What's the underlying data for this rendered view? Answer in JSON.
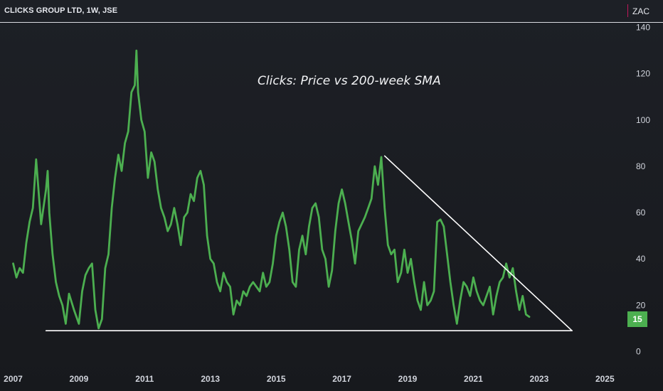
{
  "header": {
    "symbol": "CLICKS GROUP LTD, 1W, JSE",
    "currency": "ZAC",
    "last_price": "15"
  },
  "colors": {
    "price_line": "#4caf50",
    "trend_line": "#ffffff",
    "axis_text": "#d1d4dc",
    "background": "#1b1d22"
  },
  "chart_data": {
    "type": "line",
    "title": "Clicks: Price vs 200-week SMA",
    "xlabel": "",
    "ylabel": "",
    "x_ticks": [
      "2007",
      "2009",
      "2011",
      "2013",
      "2015",
      "2017",
      "2019",
      "2021",
      "2023",
      "2025"
    ],
    "y_ticks": [
      0,
      20,
      40,
      60,
      80,
      100,
      120,
      140
    ],
    "xlim": [
      2006.6,
      2025.6
    ],
    "ylim": [
      -6.3,
      142
    ],
    "grid": false,
    "series": [
      {
        "x": [
          2007.0,
          2007.1,
          2007.2,
          2007.3,
          2007.4,
          2007.5,
          2007.6,
          2007.7,
          2007.85,
          2008.0,
          2008.05,
          2008.1,
          2008.2,
          2008.3,
          2008.4,
          2008.5,
          2008.6,
          2008.7,
          2008.85,
          2009.0,
          2009.1,
          2009.2,
          2009.3,
          2009.4,
          2009.5,
          2009.6,
          2009.7,
          2009.8,
          2009.9,
          2010.0,
          2010.1,
          2010.2,
          2010.3,
          2010.4,
          2010.5,
          2010.6,
          2010.7,
          2010.75,
          2010.8,
          2010.9,
          2011.0,
          2011.1,
          2011.2,
          2011.3,
          2011.4,
          2011.5,
          2011.6,
          2011.7,
          2011.8,
          2011.9,
          2012.0,
          2012.1,
          2012.2,
          2012.3,
          2012.4,
          2012.5,
          2012.6,
          2012.7,
          2012.8,
          2012.9,
          2013.0,
          2013.1,
          2013.2,
          2013.3,
          2013.4,
          2013.5,
          2013.6,
          2013.7,
          2013.8,
          2013.9,
          2014.0,
          2014.1,
          2014.2,
          2014.3,
          2014.4,
          2014.5,
          2014.6,
          2014.7,
          2014.8,
          2014.9,
          2015.0,
          2015.1,
          2015.2,
          2015.3,
          2015.4,
          2015.5,
          2015.6,
          2015.7,
          2015.8,
          2015.9,
          2016.0,
          2016.1,
          2016.2,
          2016.3,
          2016.4,
          2016.5,
          2016.6,
          2016.7,
          2016.8,
          2016.9,
          2017.0,
          2017.1,
          2017.2,
          2017.3,
          2017.4,
          2017.5,
          2017.6,
          2017.7,
          2017.8,
          2017.9,
          2018.0,
          2018.1,
          2018.2,
          2018.3,
          2018.4,
          2018.5,
          2018.6,
          2018.7,
          2018.8,
          2018.9,
          2019.0,
          2019.1,
          2019.2,
          2019.3,
          2019.4,
          2019.5,
          2019.6,
          2019.7,
          2019.8,
          2019.9,
          2020.0,
          2020.1,
          2020.2,
          2020.3,
          2020.4,
          2020.5,
          2020.6,
          2020.7,
          2020.8,
          2020.9,
          2021.0,
          2021.1,
          2021.2,
          2021.3,
          2021.4,
          2021.5,
          2021.6,
          2021.7,
          2021.8,
          2021.9,
          2022.0,
          2022.1,
          2022.2,
          2022.3,
          2022.4,
          2022.5,
          2022.6,
          2022.7
        ],
        "values": [
          38,
          32,
          36,
          34,
          47,
          56,
          62,
          83,
          55,
          70,
          78,
          60,
          42,
          30,
          24,
          20,
          12,
          25,
          18,
          12,
          26,
          33,
          36,
          38,
          18,
          10,
          14,
          36,
          42,
          62,
          75,
          85,
          78,
          90,
          95,
          112,
          115,
          130,
          112,
          100,
          95,
          75,
          86,
          82,
          70,
          62,
          58,
          52,
          55,
          62,
          55,
          46,
          58,
          60,
          68,
          65,
          75,
          78,
          72,
          50,
          40,
          38,
          30,
          26,
          34,
          30,
          28,
          16,
          22,
          20,
          26,
          24,
          28,
          30,
          28,
          26,
          34,
          28,
          30,
          38,
          50,
          56,
          60,
          54,
          44,
          30,
          28,
          44,
          50,
          42,
          54,
          62,
          64,
          58,
          44,
          40,
          28,
          35,
          52,
          64,
          70,
          64,
          56,
          48,
          38,
          52,
          55,
          58,
          62,
          66,
          80,
          72,
          84,
          62,
          46,
          42,
          44,
          30,
          34,
          44,
          34,
          40,
          30,
          22,
          18,
          30,
          20,
          22,
          26,
          56,
          57,
          54,
          42,
          30,
          20,
          12,
          22,
          30,
          28,
          24,
          32,
          26,
          22,
          20,
          24,
          28,
          16,
          24,
          30,
          32,
          38,
          32,
          36,
          26,
          18,
          24,
          16,
          15
        ]
      },
      {
        "x": [
          2008.0,
          2024.0
        ],
        "values": [
          9,
          9
        ]
      },
      {
        "x": [
          2018.3,
          2024.0
        ],
        "values": [
          84.5,
          9
        ]
      }
    ]
  }
}
